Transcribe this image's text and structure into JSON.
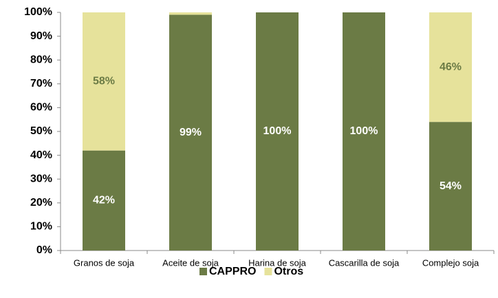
{
  "chart_data": {
    "type": "stacked_bar",
    "categories": [
      "Granos de soja",
      "Aceite de soja",
      "Harina de soja",
      "Cascarilla de soja",
      "Complejo soja"
    ],
    "series": [
      {
        "name": "CAPPRO",
        "color": "#6b7b45",
        "label_color": "#ffffff",
        "values": [
          42,
          99,
          100,
          100,
          54
        ],
        "value_labels": [
          "42%",
          "99%",
          "100%",
          "100%",
          "54%"
        ]
      },
      {
        "name": "Otros",
        "color": "#e6e29b",
        "label_color": "#6b7b45",
        "values": [
          58,
          1,
          0,
          0,
          46
        ],
        "value_labels": [
          "58%",
          null,
          null,
          null,
          "46%"
        ]
      }
    ],
    "ylim": [
      0,
      100
    ],
    "yticks": [
      {
        "value": 0,
        "label": "0%"
      },
      {
        "value": 10,
        "label": "10%"
      },
      {
        "value": 20,
        "label": "20%"
      },
      {
        "value": 30,
        "label": "30%"
      },
      {
        "value": 40,
        "label": "40%"
      },
      {
        "value": 50,
        "label": "50%"
      },
      {
        "value": 60,
        "label": "60%"
      },
      {
        "value": 70,
        "label": "70%"
      },
      {
        "value": 80,
        "label": "80%"
      },
      {
        "value": 90,
        "label": "90%"
      },
      {
        "value": 100,
        "label": "100%"
      }
    ],
    "grid": false,
    "legend": "bottom"
  }
}
